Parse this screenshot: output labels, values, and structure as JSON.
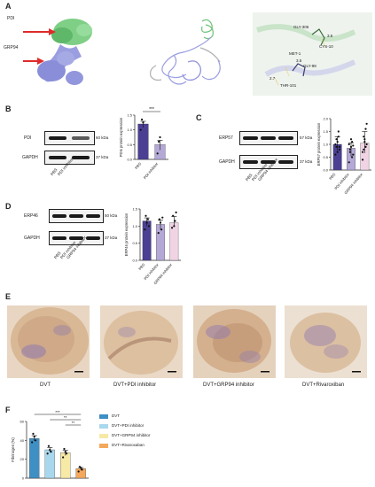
{
  "panel_labels": {
    "a": "A",
    "b": "B",
    "c": "C",
    "d": "D",
    "e": "E",
    "f": "F"
  },
  "panel_a": {
    "arrow_labels": [
      "PDI",
      "GRP94"
    ],
    "residues": [
      "GLY-306",
      "CYS-10",
      "MET-1",
      "GLY-98",
      "THR-101"
    ],
    "distances": [
      "3.5",
      "3.5",
      "2.7"
    ],
    "colors": {
      "pdi": "#7fcf86",
      "grp94": "#9a9ee0",
      "arrow": "#e02a2a"
    }
  },
  "panel_b": {
    "blot_labels": [
      "PDI",
      "GAPDH"
    ],
    "kda": [
      "60 kDa",
      "37 kDa"
    ],
    "lane_labels": [
      "PBS",
      "PDI inhibitor"
    ],
    "significance": "***"
  },
  "panel_c": {
    "blot_labels": [
      "ERP57",
      "GAPDH"
    ],
    "kda": [
      "57 kDa",
      "37 kDa"
    ],
    "lane_labels": [
      "PBS",
      "PDI inhibitor",
      "GRP94 inhibitor"
    ]
  },
  "panel_d": {
    "blot_labels": [
      "ERP46",
      "GAPDH"
    ],
    "kda": [
      "50 kDa",
      "37 kDa"
    ],
    "lane_labels": [
      "PBS",
      "PDI inhibitor",
      "GRP94 inhibitor"
    ]
  },
  "panel_e": {
    "captions": [
      "DVT",
      "DVT+PDI inhibitor",
      "DVT+GRP94 inhibitor",
      "DVT+Rivaroxiban"
    ],
    "colors": {
      "stain_bg": "#dcc2a4",
      "stain_dark": "#b08a68",
      "nuclei": "#6a5aa0"
    }
  },
  "panel_f": {
    "legend": [
      "DVT",
      "DVT+PDI inhibitor",
      "DVT+GRP94 inhibitor",
      "DVT+Rivaroxaban"
    ],
    "significance": [
      "***",
      "**",
      "**"
    ]
  },
  "chart_data": [
    {
      "type": "bar",
      "panel": "B",
      "ylabel": "PDIs protein expression",
      "categories": [
        "PBS",
        "PDI inhibitor"
      ],
      "values": [
        1.2,
        0.5
      ],
      "points": [
        [
          1.0,
          1.35,
          1.25
        ],
        [
          0.2,
          0.6,
          0.75
        ]
      ],
      "ylim": [
        0,
        1.5
      ],
      "yticks": [
        "0.0",
        "0.5",
        "1.0",
        "1.5"
      ],
      "colors": [
        "#4b3f94",
        "#b3a8d6"
      ]
    },
    {
      "type": "bar",
      "panel": "C",
      "ylabel": "ERP57 protein expression",
      "categories": [
        "PBS",
        "PDI inhibitor",
        "GRP94 inhibitor"
      ],
      "values": [
        1.0,
        0.85,
        1.05
      ],
      "points": [
        [
          0.6,
          0.9,
          1.1,
          1.3,
          0.8,
          1.0,
          1.2,
          0.7,
          1.5,
          0.9
        ],
        [
          0.3,
          0.7,
          0.9,
          1.1,
          0.6,
          1.0,
          0.8,
          1.2,
          0.5,
          0.95
        ],
        [
          0.4,
          0.8,
          1.2,
          1.6,
          1.0,
          0.7,
          1.3,
          1.1,
          0.9,
          1.8
        ]
      ],
      "ylim": [
        0,
        2.0
      ],
      "yticks": [
        "0.0",
        "0.5",
        "1.0",
        "1.5",
        "2.0"
      ],
      "colors": [
        "#4b3f94",
        "#b3a8d6",
        "#f0d4e4"
      ]
    },
    {
      "type": "bar",
      "panel": "D",
      "ylabel": "ERP46 protein expression",
      "categories": [
        "PBS",
        "PDI inhibitor",
        "GRP94 inhibitor"
      ],
      "values": [
        1.15,
        1.05,
        1.1
      ],
      "points": [
        [
          0.9,
          1.3,
          1.1,
          1.2,
          1.0
        ],
        [
          0.8,
          1.2,
          1.1,
          0.9,
          1.25
        ],
        [
          0.95,
          1.3,
          1.0,
          1.15,
          1.4
        ]
      ],
      "ylim": [
        0,
        1.5
      ],
      "yticks": [
        "0.0",
        "0.5",
        "1.0",
        "1.5"
      ],
      "colors": [
        "#4b3f94",
        "#b3a8d6",
        "#f0d4e4"
      ]
    },
    {
      "type": "bar",
      "panel": "F",
      "ylabel": "Fibrinogen (%)",
      "categories": [
        "DVT",
        "DVT+PDI inhibitor",
        "DVT+GRP94 inhibitor",
        "DVT+Rivaroxaban"
      ],
      "values": [
        42,
        30,
        27,
        10
      ],
      "points": [
        [
          38,
          47,
          44,
          40
        ],
        [
          26,
          34,
          30,
          28
        ],
        [
          22,
          31,
          28,
          26
        ],
        [
          7,
          12,
          11,
          9
        ]
      ],
      "ylim": [
        0,
        60
      ],
      "yticks": [
        "0",
        "20",
        "40",
        "60"
      ],
      "colors": [
        "#3d8fc4",
        "#a9d8ee",
        "#f7e9a6",
        "#f4a85c"
      ]
    }
  ]
}
